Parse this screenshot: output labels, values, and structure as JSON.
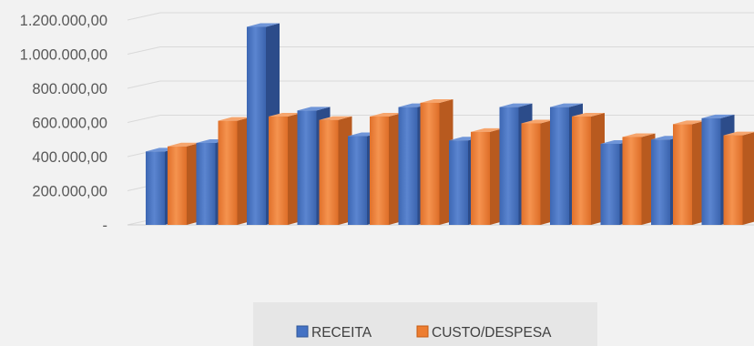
{
  "chart_data": {
    "type": "bar",
    "title": "",
    "xlabel": "",
    "ylabel": "",
    "ylim": [
      0,
      1200000
    ],
    "y_ticks": [
      "-",
      "200.000,00",
      "400.000,00",
      "600.000,00",
      "800.000,00",
      "1.000.000,00",
      "1.200.000,00"
    ],
    "grid": true,
    "legend_position": "bottom",
    "series": [
      {
        "name": "RECEITA",
        "color": "#4472c4",
        "values": [
          430000,
          480000,
          1160000,
          670000,
          520000,
          690000,
          495000,
          690000,
          690000,
          475000,
          500000,
          625000
        ]
      },
      {
        "name": "CUSTO/DESPESA",
        "color": "#ed7d31",
        "values": [
          460000,
          610000,
          635000,
          615000,
          635000,
          715000,
          545000,
          595000,
          635000,
          515000,
          590000,
          525000
        ]
      }
    ]
  }
}
